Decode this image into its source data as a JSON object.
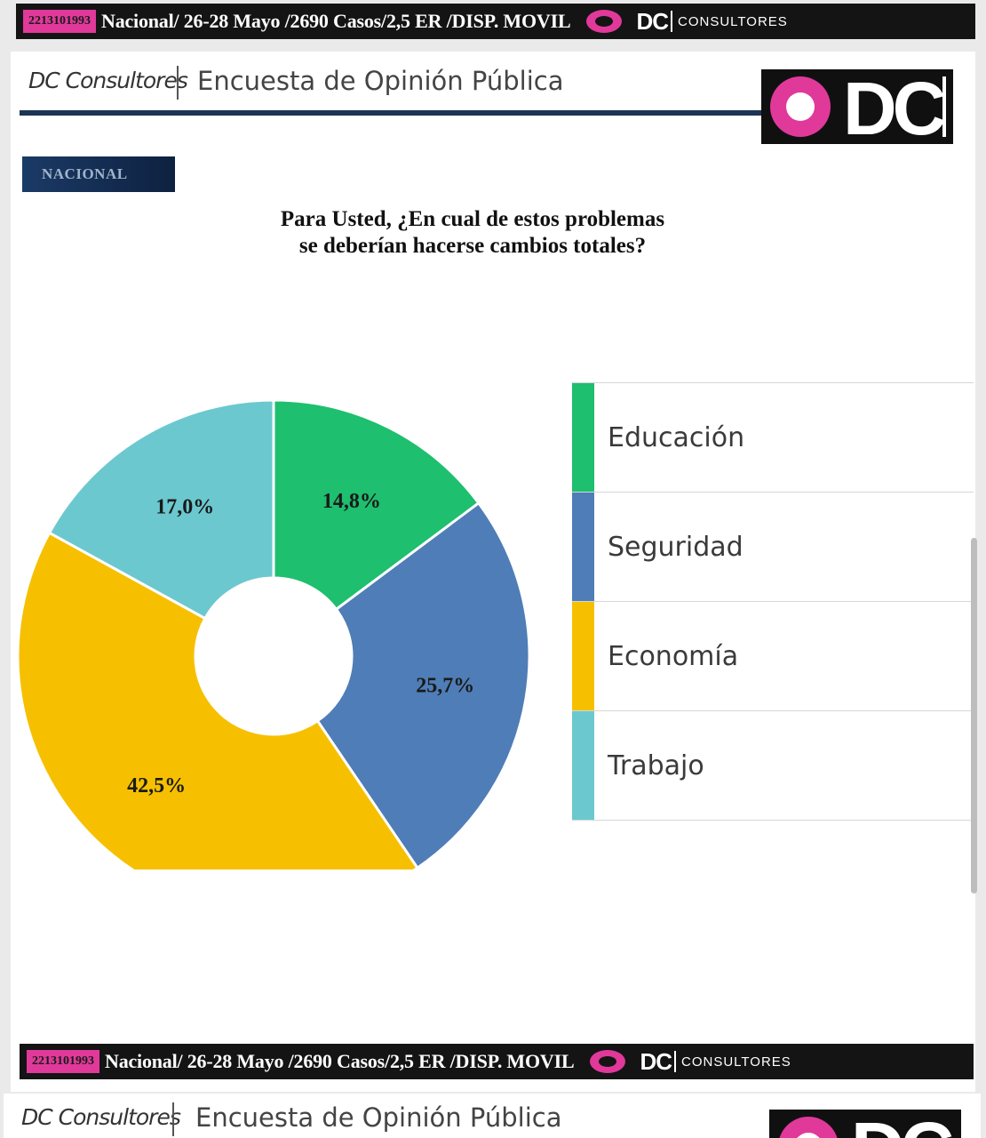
{
  "banner": {
    "phone": "2213101993",
    "info": "Nacional/ 26-28 Mayo /2690 Casos/2,5 ER /DISP. MOVIL",
    "logo_text": "DC",
    "consultores": "CONSULTORES"
  },
  "header": {
    "brand": "DC Consultores",
    "survey_title": "Encuesta de Opinión Pública",
    "logo_text": "DC"
  },
  "section_tag": "NACIONAL",
  "question": {
    "line1": "Para Usted, ¿En cual de estos problemas",
    "line2": "se deberían hacerse cambios totales?"
  },
  "chart_data": {
    "type": "pie",
    "donut": true,
    "title": "Para Usted, ¿En cual de estos problemas se deberían hacerse cambios totales?",
    "categories": [
      "Educación",
      "Seguridad",
      "Economía",
      "Trabajo"
    ],
    "values": [
      14.8,
      25.7,
      42.5,
      17.0
    ],
    "value_labels": [
      "14,8%",
      "25,7%",
      "42,5%",
      "17,0%"
    ],
    "colors": [
      "#1ebf6e",
      "#4f7db7",
      "#f6c000",
      "#6cc8cf"
    ],
    "legend_position": "right"
  }
}
